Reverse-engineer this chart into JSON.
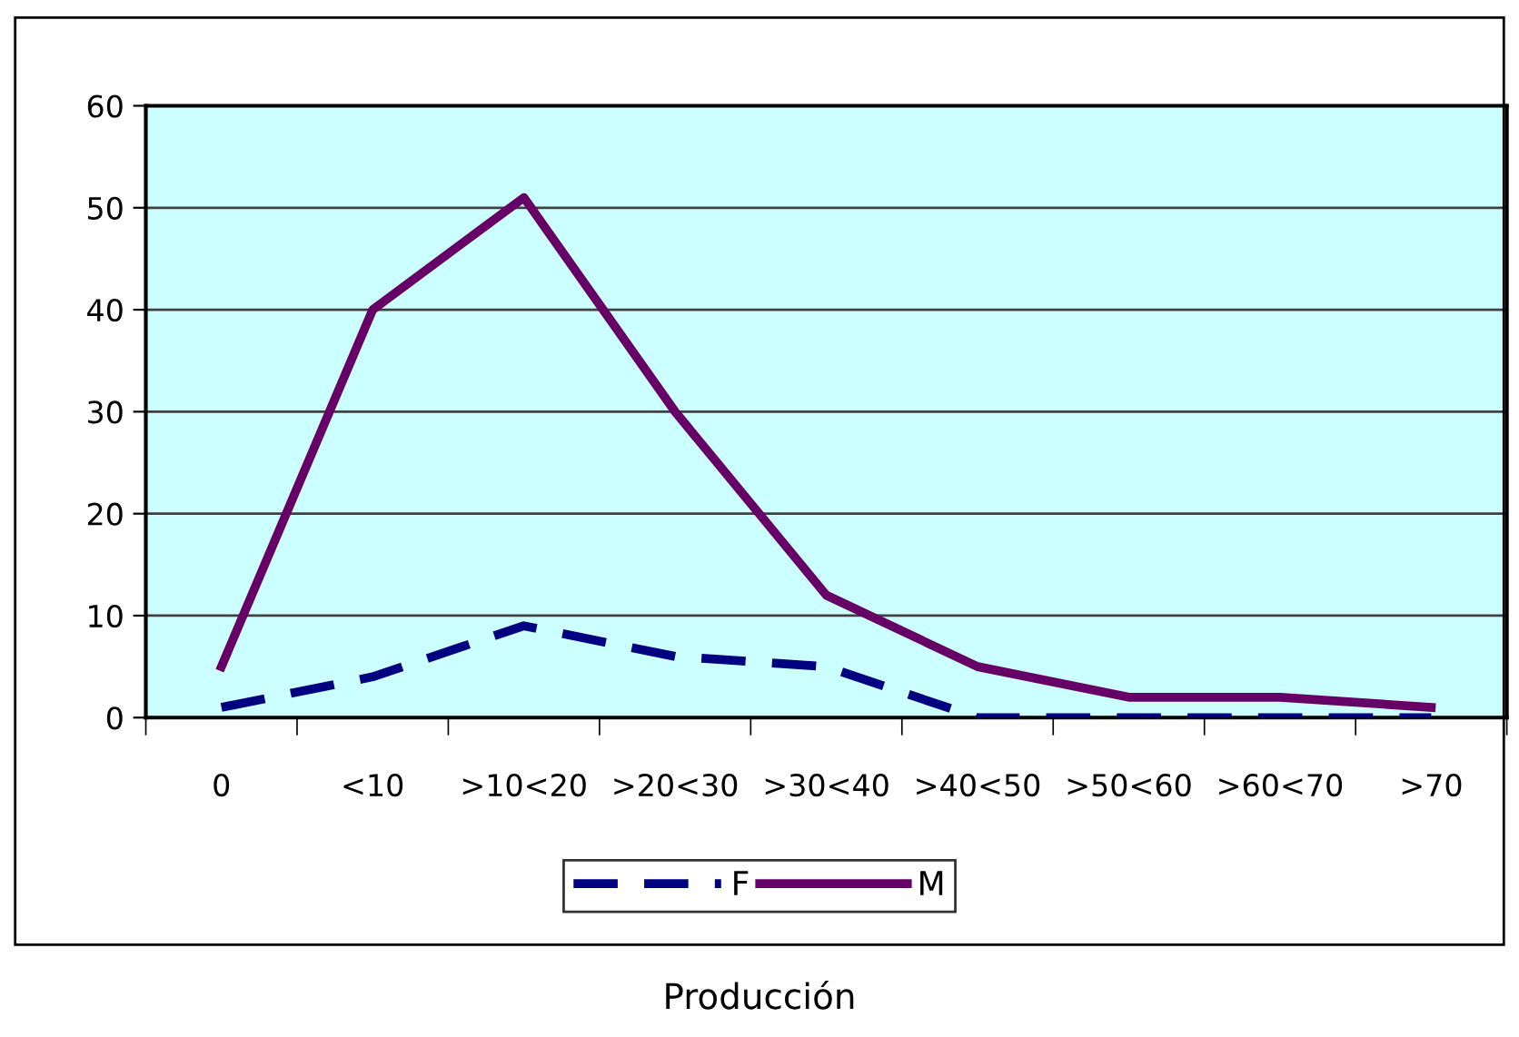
{
  "chart_data": {
    "type": "line",
    "annotations": [
      "Producción"
    ],
    "categories": [
      "0",
      "<10",
      ">10<20",
      ">20<30",
      ">30<40",
      ">40<50",
      ">50<60",
      ">60<70",
      ">70"
    ],
    "series": [
      {
        "name": "F",
        "color": "#000080",
        "line_style": "dashed",
        "values": [
          1,
          4,
          9,
          6,
          5,
          0,
          0,
          0,
          0
        ]
      },
      {
        "name": "M",
        "color": "#660066",
        "line_style": "solid",
        "values": [
          5,
          40,
          51,
          30,
          12,
          5,
          2,
          2,
          1
        ]
      }
    ],
    "ylim": [
      0,
      60
    ],
    "yticks": [
      0,
      10,
      20,
      30,
      40,
      50,
      60
    ],
    "grid": "y",
    "legend": "bottom",
    "marker": "none"
  }
}
